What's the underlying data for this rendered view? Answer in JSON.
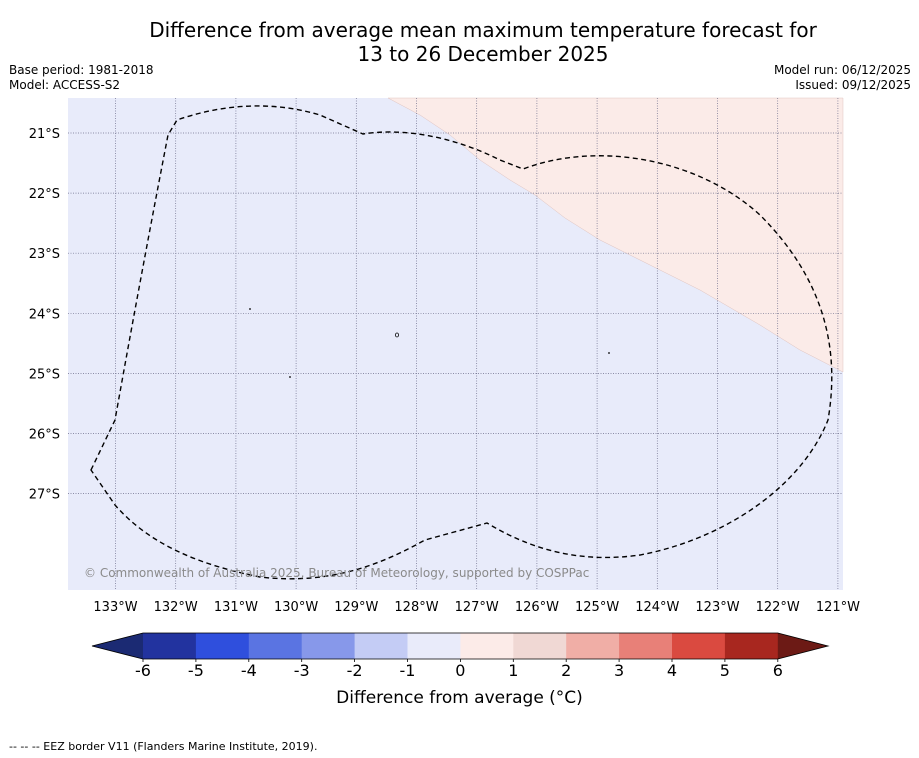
{
  "header": {
    "title_line1": "Difference from average mean maximum temperature forecast for",
    "title_line2": "13 to 26 December 2025",
    "base_period": "Base period: 1981-2018",
    "model": "Model: ACCESS-S2",
    "model_run": "Model run: 06/12/2025",
    "issued": "Issued: 09/12/2025"
  },
  "map": {
    "latitude_labels": [
      "21°S",
      "22°S",
      "23°S",
      "24°S",
      "25°S",
      "26°S",
      "27°S"
    ],
    "longitude_labels": [
      "133°W",
      "132°W",
      "131°W",
      "130°W",
      "129°W",
      "128°W",
      "127°W",
      "126°W",
      "125°W",
      "124°W",
      "123°W",
      "122°W",
      "121°W"
    ],
    "copyright": "© Commonwealth of Australia 2025, Bureau of Meteorology, supported by COSPPac",
    "fill_colors": {
      "anomaly_minus_1_to_0": "#e8ebfa",
      "anomaly_0_to_1": "#fbebe8"
    }
  },
  "colorbar": {
    "tick_labels": [
      "-6",
      "-5",
      "-4",
      "-3",
      "-2",
      "-1",
      "0",
      "1",
      "2",
      "3",
      "4",
      "5",
      "6"
    ],
    "colors": [
      "#22339f",
      "#2f4fdd",
      "#5a74e2",
      "#8798ea",
      "#c4ccf5",
      "#e9ebfa",
      "#fcebe8",
      "#f0d8d4",
      "#f0aea6",
      "#e88078",
      "#da4a40",
      "#a8271f"
    ],
    "under_color": "#1b2a73",
    "over_color": "#6c1a15",
    "label": "Difference from average (°C)"
  },
  "footer": {
    "legend_text": "--  --  -- EEZ border V11 (Flanders Marine Institute, 2019)."
  }
}
